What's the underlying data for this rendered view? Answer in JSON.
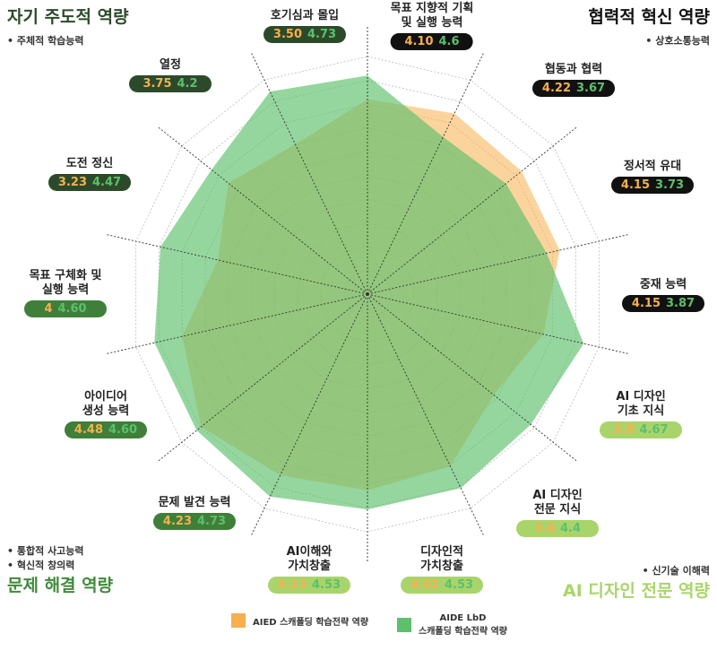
{
  "chart_data": {
    "type": "radar",
    "categories": [
      "목표 지향적 기획\n및 실행 능력",
      "협동과 협력",
      "정서적 유대",
      "중재 능력",
      "AI 디자인\n기초 지식",
      "AI 디자인\n전문 지식",
      "디자인적\n가치창출",
      "AI이해와\n가치창출",
      "문제 발견 능력",
      "아이디어\n생성 능력",
      "목표 구체화 및\n실행 능력",
      "도전 정신",
      "열정",
      "호기심과 몰입"
    ],
    "label_colors": [
      "#111111",
      "#111111",
      "#111111",
      "#111111",
      "#a9d46c",
      "#a9d46c",
      "#a9d46c",
      "#a9d46c",
      "#3f7f3a",
      "#3f7f3a",
      "#3f7f3a",
      "#2c4a2a",
      "#2c4a2a",
      "#2c4a2a"
    ],
    "series": [
      {
        "name": "AIED 스캐폴딩 학습전략 역량",
        "color": "#f7b04d",
        "values": [
          4.1,
          4.22,
          4.15,
          4.15,
          3.8,
          3.4,
          4.02,
          4.13,
          4.23,
          4.48,
          4,
          3.23,
          3.75,
          3.5
        ],
        "value_labels": [
          "4.10",
          "4.22",
          "4.15",
          "4.15",
          "3.8",
          "3.4",
          "4.02",
          "4.13",
          "4.23",
          "4.48",
          "4",
          "3.23",
          "3.75",
          "3.50"
        ]
      },
      {
        "name": "AIDE LbD\n스캐폴딩 학습전략 역량",
        "color": "#5cc06c",
        "values": [
          4.6,
          3.67,
          3.73,
          3.87,
          4.67,
          4.4,
          4.53,
          4.53,
          4.73,
          4.6,
          4.6,
          4.47,
          4.2,
          4.73
        ],
        "value_labels": [
          "4.6",
          "3.67",
          "3.73",
          "3.87",
          "4.67",
          "4.4",
          "4.53",
          "4.53",
          "4.73",
          "4.60",
          "4.60",
          "4.47",
          "4.2",
          "4.73"
        ]
      }
    ],
    "rlim": [
      0,
      5
    ],
    "rticks": [
      0.5,
      1,
      1.5,
      2,
      2.5,
      3,
      3.5,
      4,
      4.5,
      5
    ],
    "groups": [
      {
        "name": "자기 주도적 역량",
        "color": "#2c4a2a",
        "bullets": [
          "주체적 학습능력"
        ]
      },
      {
        "name": "협력적 혁신 역량",
        "color": "#111111",
        "bullets": [
          "상호소통능력"
        ]
      },
      {
        "name": "문제 해결 역량",
        "color": "#3f8a3a",
        "bullets": [
          "통합적 사고능력",
          "혁신적 창의력"
        ]
      },
      {
        "name": "AI 디자인 전문 역량",
        "color": "#a9d46c",
        "bullets": [
          "신기술 이해력"
        ]
      }
    ]
  }
}
